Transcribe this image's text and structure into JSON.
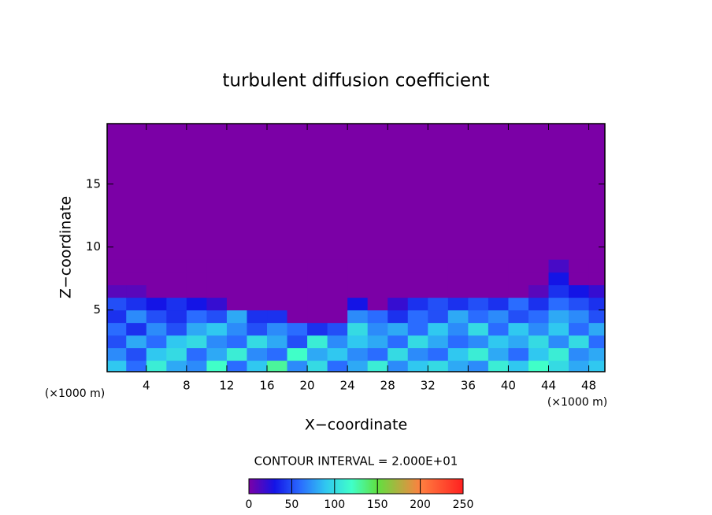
{
  "chart_data": {
    "type": "heatmap",
    "title": "turbulent diffusion coefficient",
    "xlabel": "X−coordinate",
    "ylabel": "Z−coordinate",
    "x_unit_label": "(×1000 m)",
    "annotation": "CONTOUR INTERVAL = 2.000E+01",
    "xlim": [
      0.1,
      49.6
    ],
    "ylim": [
      0.1,
      19.8
    ],
    "xticks": [
      4,
      8,
      12,
      16,
      20,
      24,
      28,
      32,
      36,
      40,
      44,
      48
    ],
    "yticks": [
      5,
      10,
      15
    ],
    "x": [
      1,
      3,
      5,
      7,
      9,
      11,
      13,
      15,
      17,
      19,
      21,
      23,
      25,
      27,
      29,
      31,
      33,
      35,
      37,
      39,
      41,
      43,
      45,
      47,
      49
    ],
    "z": [
      0.5,
      1.5,
      2.5,
      3.5,
      4.5,
      5.5,
      6.5,
      7.5,
      8.5
    ],
    "values": [
      [
        90,
        60,
        110,
        80,
        70,
        120,
        60,
        90,
        130,
        70,
        100,
        60,
        80,
        110,
        70,
        90,
        100,
        80,
        70,
        110,
        90,
        120,
        100,
        80,
        90
      ],
      [
        70,
        50,
        90,
        100,
        60,
        80,
        110,
        70,
        60,
        120,
        80,
        90,
        70,
        60,
        100,
        70,
        60,
        90,
        110,
        80,
        60,
        90,
        110,
        70,
        80
      ],
      [
        50,
        80,
        60,
        90,
        100,
        70,
        60,
        100,
        80,
        50,
        110,
        70,
        90,
        80,
        60,
        100,
        80,
        60,
        70,
        90,
        80,
        100,
        70,
        100,
        60
      ],
      [
        60,
        40,
        70,
        50,
        80,
        90,
        70,
        50,
        70,
        60,
        40,
        50,
        100,
        70,
        80,
        60,
        90,
        70,
        100,
        60,
        90,
        70,
        90,
        60,
        80
      ],
      [
        40,
        70,
        50,
        40,
        60,
        50,
        80,
        40,
        40,
        0,
        0,
        0,
        70,
        60,
        40,
        60,
        50,
        80,
        60,
        70,
        50,
        60,
        80,
        70,
        50
      ],
      [
        50,
        40,
        30,
        40,
        30,
        20,
        0,
        0,
        0,
        0,
        0,
        0,
        30,
        0,
        20,
        40,
        50,
        40,
        50,
        40,
        60,
        40,
        60,
        50,
        40
      ],
      [
        10,
        10,
        0,
        0,
        0,
        0,
        0,
        0,
        0,
        0,
        0,
        0,
        0,
        0,
        0,
        0,
        0,
        0,
        0,
        0,
        0,
        10,
        40,
        30,
        20
      ],
      [
        0,
        0,
        0,
        0,
        0,
        0,
        0,
        0,
        0,
        0,
        0,
        0,
        0,
        0,
        0,
        0,
        0,
        0,
        0,
        0,
        0,
        0,
        30,
        0,
        0
      ],
      [
        0,
        0,
        0,
        0,
        0,
        0,
        0,
        0,
        0,
        0,
        0,
        0,
        0,
        0,
        0,
        0,
        0,
        0,
        0,
        0,
        0,
        0,
        15,
        0,
        0
      ]
    ],
    "colorbar_lim": [
      0,
      250
    ],
    "colorbar_ticks": [
      0,
      50,
      100,
      150,
      200,
      250
    ],
    "colorscale": [
      {
        "value": 0,
        "color": "#7b00a6"
      },
      {
        "value": 30,
        "color": "#1414e6"
      },
      {
        "value": 60,
        "color": "#2a6cff"
      },
      {
        "value": 90,
        "color": "#30c8f0"
      },
      {
        "value": 120,
        "color": "#40ffc8"
      },
      {
        "value": 150,
        "color": "#60e040"
      },
      {
        "value": 200,
        "color": "#ff8040"
      },
      {
        "value": 250,
        "color": "#ff2020"
      }
    ]
  }
}
